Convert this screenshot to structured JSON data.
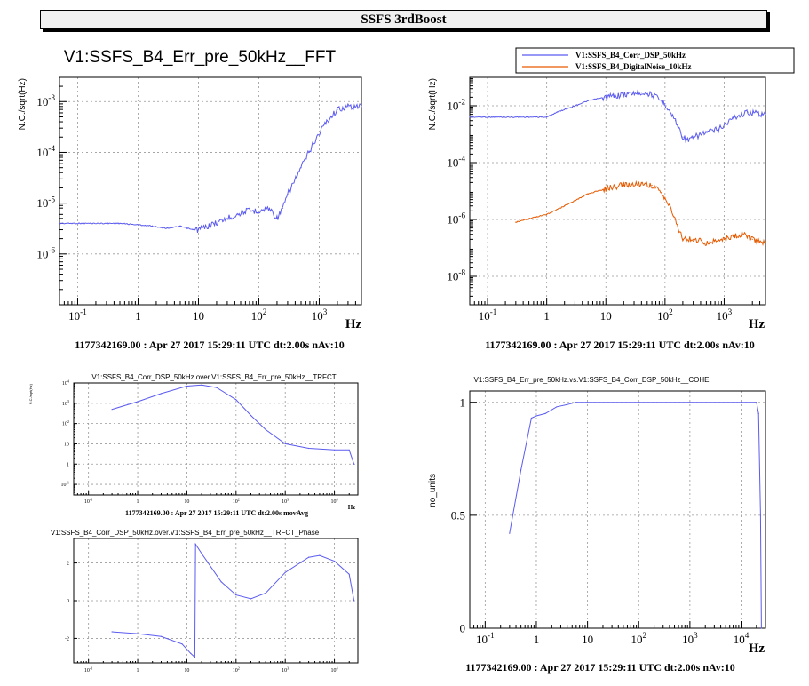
{
  "page": {
    "title": "SSFS 3rdBoost"
  },
  "chart_data": [
    {
      "id": "p1",
      "type": "line",
      "title": "V1:SSFS_B4_Err_pre_50kHz__FFT",
      "xlabel": "Hz",
      "ylabel": "N.C./sqrt(Hz)",
      "xscale": "log",
      "yscale": "log",
      "xlim": [
        0.05,
        5000
      ],
      "ylim": [
        1e-07,
        0.003
      ],
      "grid": true,
      "x_ticks": [
        "10^-1",
        "1",
        "10",
        "10^2",
        "10^3"
      ],
      "y_ticks": [
        "10^-6",
        "10^-5",
        "10^-4",
        "10^-3"
      ],
      "footer": "1177342169.00 : Apr 27 2017 15:29:11 UTC dt:2.00s nAv:10",
      "series": [
        {
          "color": "#5b5bf0",
          "x": [
            0.05,
            0.5,
            1.5,
            3,
            5,
            8,
            10,
            15,
            30,
            60,
            100,
            150,
            200,
            250,
            300,
            500,
            800,
            1200,
            2000,
            3000,
            5000
          ],
          "y": [
            4e-06,
            4e-06,
            3.6e-06,
            3.2e-06,
            3.5e-06,
            3e-06,
            3e-06,
            3.6e-06,
            5e-06,
            7e-06,
            7e-06,
            8e-06,
            5e-06,
            8e-06,
            1.5e-05,
            5e-05,
            0.00015,
            0.00035,
            0.0007,
            0.0008,
            0.0008
          ]
        }
      ]
    },
    {
      "id": "p2",
      "type": "line",
      "title": "",
      "xlabel": "Hz",
      "ylabel": "N.C./sqrt(Hz)",
      "xscale": "log",
      "yscale": "log",
      "xlim": [
        0.05,
        5000
      ],
      "ylim": [
        1e-09,
        0.1
      ],
      "grid": true,
      "x_ticks": [
        "10^-1",
        "1",
        "10",
        "10^2",
        "10^3"
      ],
      "y_ticks": [
        "10^-8",
        "10^-6",
        "10^-4",
        "10^-2"
      ],
      "legend": "top-right",
      "footer": "1177342169.00 : Apr 27 2017 15:29:11 UTC dt:2.00s nAv:10",
      "series": [
        {
          "name": "V1:SSFS_B4_Corr_DSP_50kHz",
          "color": "#5b5bf0",
          "x": [
            0.05,
            1,
            1.5,
            3,
            5,
            10,
            20,
            40,
            60,
            100,
            150,
            200,
            250,
            400,
            800,
            1500,
            2500,
            5000
          ],
          "y": [
            0.004,
            0.004,
            0.006,
            0.01,
            0.015,
            0.02,
            0.025,
            0.03,
            0.025,
            0.012,
            0.003,
            0.0008,
            0.0006,
            0.001,
            0.0015,
            0.004,
            0.006,
            0.005
          ]
        },
        {
          "name": "V1:SSFS_B4_DigitalNoise_10kHz",
          "color": "#e65a00",
          "x": [
            0.3,
            1,
            2,
            5,
            10,
            20,
            40,
            60,
            100,
            150,
            200,
            300,
            500,
            1000,
            2000,
            3000,
            5000
          ],
          "y": [
            8e-07,
            1.5e-06,
            3e-06,
            8e-06,
            1.2e-05,
            1.6e-05,
            1.8e-05,
            1.6e-05,
            6e-06,
            1e-06,
            2e-07,
            2e-07,
            1.5e-07,
            2e-07,
            3e-07,
            2e-07,
            1.5e-07
          ]
        }
      ]
    },
    {
      "id": "p3",
      "type": "line",
      "title": "V1:SSFS_B4_Corr_DSP_50kHz.over.V1:SSFS_B4_Err_pre_50kHz__TRFCT",
      "xlabel": "Hz",
      "ylabel": "N.C./sqrt(Hz)",
      "xscale": "log",
      "yscale": "log",
      "xlim": [
        0.05,
        30000
      ],
      "ylim": [
        0.03,
        10000.0
      ],
      "grid": true,
      "x_ticks": [
        "10^-1",
        "1",
        "10",
        "10^2",
        "10^3",
        "10^4"
      ],
      "y_ticks": [
        "10^-1",
        "1",
        "10",
        "10^2",
        "10^3",
        "10^4"
      ],
      "footer": "1177342169.00 : Apr 27 2017 15:29:11 UTC dt:2.00s movAvg",
      "series": [
        {
          "color": "#5b5bf0",
          "x": [
            0.3,
            1,
            3,
            10,
            20,
            40,
            100,
            200,
            400,
            1000,
            3000,
            10000,
            20000,
            25000
          ],
          "y": [
            500,
            1200,
            3000,
            7000,
            8000,
            6000,
            1500,
            250,
            50,
            10,
            6,
            5,
            5,
            1
          ]
        }
      ]
    },
    {
      "id": "p4",
      "type": "line",
      "title": "V1:SSFS_B4_Corr_DSP_50kHz.over.V1:SSFS_B4_Err_pre_50kHz__TRFCT_Phase",
      "xlabel": "",
      "ylabel": "",
      "xscale": "log",
      "yscale": "linear",
      "xlim": [
        0.05,
        30000
      ],
      "ylim": [
        -3.3,
        3.3
      ],
      "grid": true,
      "x_ticks": [
        "10^-1",
        "1",
        "10",
        "10^2",
        "10^3",
        "10^4"
      ],
      "y_ticks": [
        "-2",
        "0",
        "2"
      ],
      "series": [
        {
          "color": "#5b5bf0",
          "x": [
            0.3,
            1,
            3,
            8,
            12,
            14.5,
            15,
            20,
            50,
            100,
            200,
            400,
            1000,
            3000,
            5000,
            10000,
            20000,
            25000
          ],
          "y": [
            -1.65,
            -1.75,
            -1.9,
            -2.3,
            -2.8,
            -3.0,
            3.0,
            2.5,
            1.0,
            0.3,
            0.1,
            0.4,
            1.5,
            2.3,
            2.4,
            2.1,
            1.4,
            0.0
          ]
        }
      ]
    },
    {
      "id": "p5",
      "type": "line",
      "title": "V1:SSFS_B4_Err_pre_50kHz.vs.V1:SSFS_B4_Corr_DSP_50kHz__COHE",
      "xlabel": "Hz",
      "ylabel": "no_units",
      "xscale": "log",
      "yscale": "linear",
      "xlim": [
        0.05,
        30000
      ],
      "ylim": [
        0,
        1.05
      ],
      "grid": true,
      "x_ticks": [
        "10^-1",
        "1",
        "10",
        "10^2",
        "10^3",
        "10^4"
      ],
      "y_ticks": [
        "0",
        "0.5",
        "1"
      ],
      "footer": "1177342169.00 : Apr 27 2017 15:29:11 UTC dt:2.00s nAv:10",
      "series": [
        {
          "color": "#5b5bf0",
          "x": [
            0.3,
            0.5,
            0.8,
            1.0,
            1.5,
            2.5,
            4,
            6,
            10,
            100,
            1000,
            10000,
            20000,
            22000,
            24000,
            25000
          ],
          "y": [
            0.42,
            0.7,
            0.93,
            0.94,
            0.95,
            0.98,
            0.99,
            1.0,
            1.0,
            1.0,
            1.0,
            1.0,
            1.0,
            0.95,
            0.5,
            0.0
          ]
        }
      ]
    }
  ]
}
